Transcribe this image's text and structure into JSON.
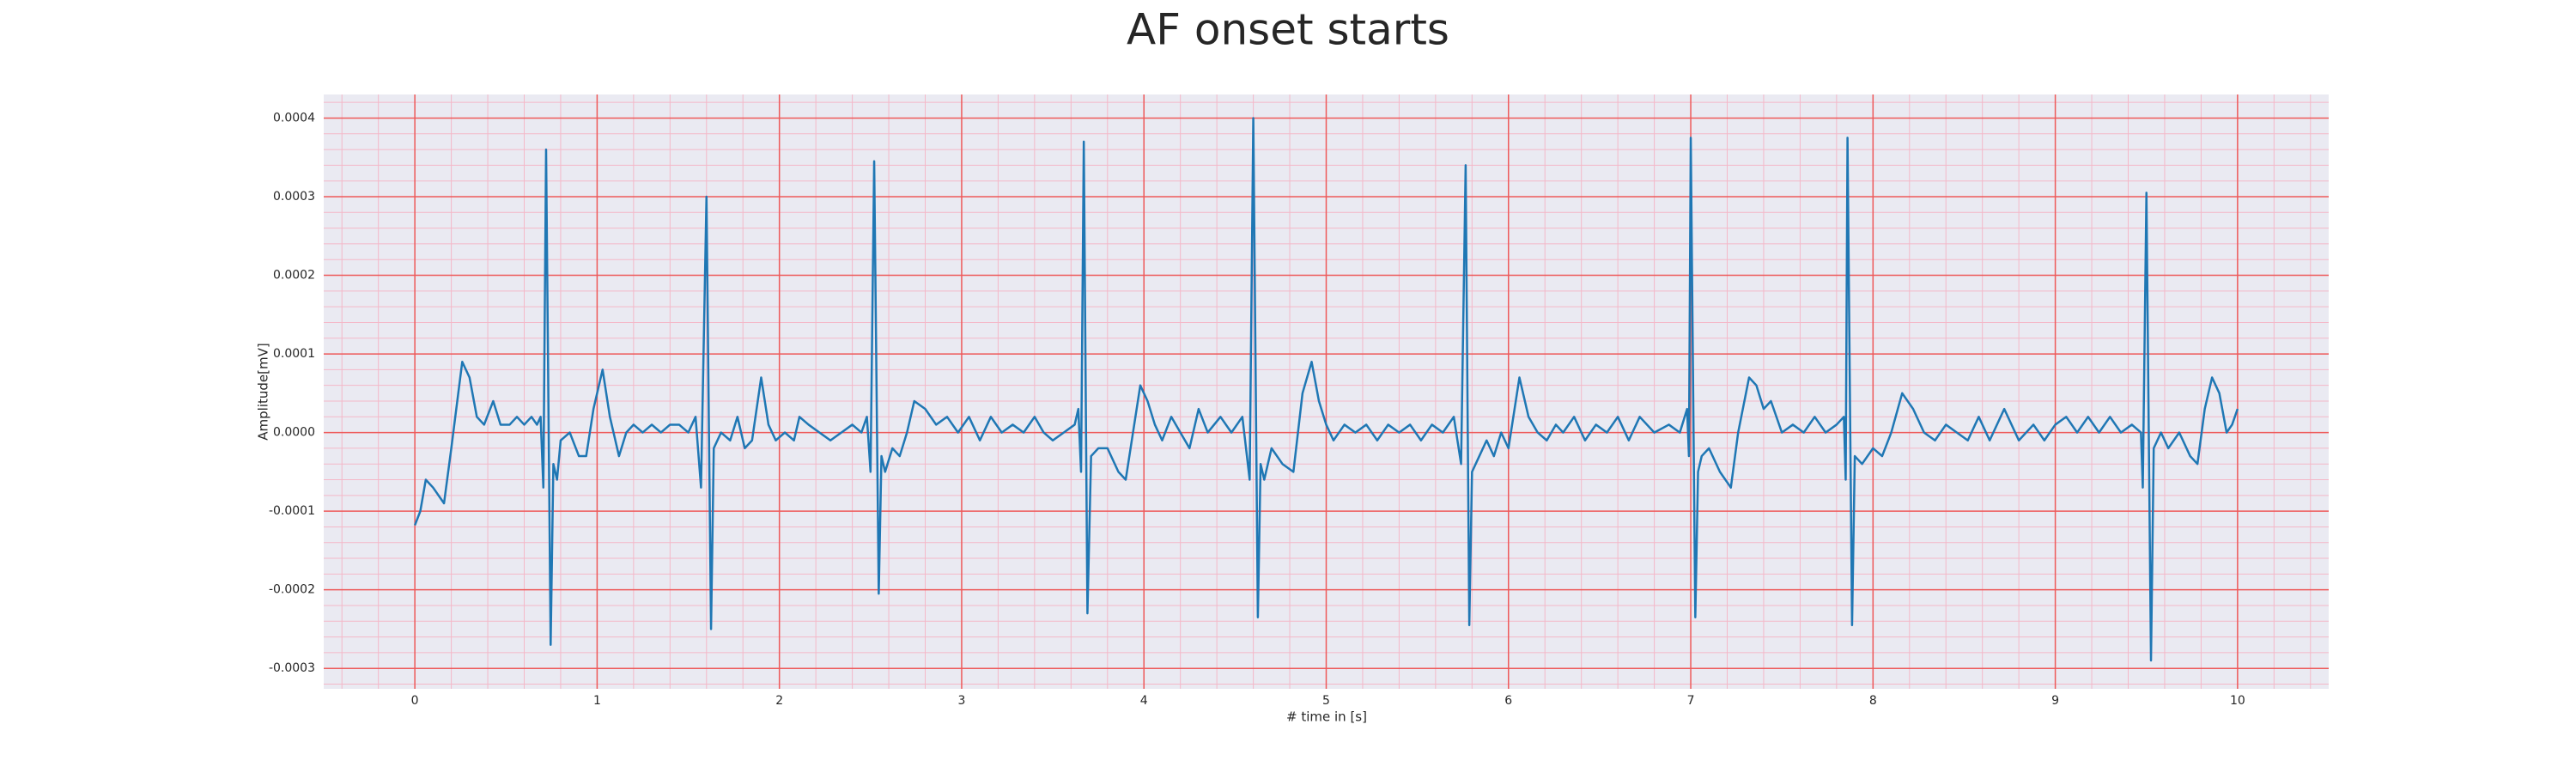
{
  "chart_data": {
    "type": "line",
    "title": "AF onset starts",
    "xlabel": "# time in [s]",
    "ylabel": "Amplitude[mV]",
    "xlim": [
      -0.5,
      10.5
    ],
    "xticks": [
      0,
      1,
      2,
      3,
      4,
      5,
      6,
      7,
      8,
      9,
      10
    ],
    "ylim": [
      -0.000326,
      0.00043
    ],
    "yticks": [
      -0.0003,
      -0.0002,
      -0.0001,
      {
        "value": 0,
        "label": "0.0000"
      },
      0.0001,
      0.0002,
      0.0003,
      0.0004
    ],
    "grid": true,
    "minor_grid": true,
    "color": "#1f77b4",
    "x": [
      0,
      0.03,
      0.06,
      0.1,
      0.16,
      0.2,
      0.26,
      0.3,
      0.34,
      0.38,
      0.43,
      0.47,
      0.52,
      0.56,
      0.6,
      0.64,
      0.67,
      0.69,
      0.705,
      0.72,
      0.745,
      0.76,
      0.78,
      0.8,
      0.85,
      0.9,
      0.94,
      0.98,
      1.03,
      1.07,
      1.12,
      1.16,
      1.2,
      1.25,
      1.3,
      1.35,
      1.4,
      1.45,
      1.5,
      1.54,
      1.57,
      1.6,
      1.625,
      1.64,
      1.68,
      1.73,
      1.77,
      1.81,
      1.85,
      1.9,
      1.94,
      1.98,
      2.03,
      2.08,
      2.11,
      2.16,
      2.22,
      2.28,
      2.34,
      2.4,
      2.45,
      2.48,
      2.5,
      2.52,
      2.545,
      2.56,
      2.58,
      2.62,
      2.66,
      2.7,
      2.74,
      2.8,
      2.86,
      2.92,
      2.98,
      3.04,
      3.1,
      3.16,
      3.22,
      3.28,
      3.34,
      3.4,
      3.45,
      3.5,
      3.56,
      3.62,
      3.64,
      3.655,
      3.67,
      3.69,
      3.71,
      3.75,
      3.8,
      3.86,
      3.9,
      3.94,
      3.98,
      4.02,
      4.06,
      4.1,
      4.15,
      4.2,
      4.25,
      4.3,
      4.35,
      4.42,
      4.48,
      4.54,
      4.58,
      4.6,
      4.625,
      4.64,
      4.66,
      4.7,
      4.76,
      4.82,
      4.87,
      4.92,
      4.96,
      5.0,
      5.04,
      5.1,
      5.16,
      5.22,
      5.28,
      5.34,
      5.4,
      5.46,
      5.52,
      5.58,
      5.64,
      5.7,
      5.74,
      5.765,
      5.785,
      5.8,
      5.84,
      5.88,
      5.92,
      5.96,
      6.0,
      6.06,
      6.11,
      6.16,
      6.21,
      6.26,
      6.3,
      6.36,
      6.42,
      6.48,
      6.54,
      6.6,
      6.66,
      6.72,
      6.8,
      6.88,
      6.94,
      6.98,
      6.99,
      7.0,
      7.025,
      7.04,
      7.06,
      7.1,
      7.16,
      7.22,
      7.26,
      7.32,
      7.36,
      7.4,
      7.44,
      7.5,
      7.56,
      7.62,
      7.68,
      7.74,
      7.8,
      7.84,
      7.85,
      7.86,
      7.885,
      7.9,
      7.94,
      8.0,
      8.05,
      8.1,
      8.16,
      8.22,
      8.28,
      8.34,
      8.4,
      8.46,
      8.52,
      8.58,
      8.64,
      8.72,
      8.8,
      8.88,
      8.94,
      9.0,
      9.06,
      9.12,
      9.18,
      9.24,
      9.3,
      9.36,
      9.42,
      9.47,
      9.48,
      9.5,
      9.525,
      9.54,
      9.58,
      9.62,
      9.68,
      9.74,
      9.78,
      9.82,
      9.86,
      9.9,
      9.94,
      9.97,
      10.0
    ],
    "values": [
      -0.000118,
      -0.0001,
      -6e-05,
      -7e-05,
      -9e-05,
      -2e-05,
      9e-05,
      7e-05,
      2e-05,
      1e-05,
      4e-05,
      1e-05,
      1e-05,
      2e-05,
      1e-05,
      2e-05,
      1e-05,
      2e-05,
      -7e-05,
      0.00036,
      -0.00027,
      -4e-05,
      -6e-05,
      -1e-05,
      0,
      -3e-05,
      -3e-05,
      3e-05,
      8e-05,
      2e-05,
      -3e-05,
      0,
      1e-05,
      0,
      1e-05,
      0,
      1e-05,
      1e-05,
      0,
      2e-05,
      -7e-05,
      0.0003,
      -0.00025,
      -2e-05,
      0,
      -1e-05,
      2e-05,
      -2e-05,
      -1e-05,
      7e-05,
      1e-05,
      -1e-05,
      0,
      -1e-05,
      2e-05,
      1e-05,
      0,
      -1e-05,
      0,
      1e-05,
      0,
      2e-05,
      -5e-05,
      0.000345,
      -0.000205,
      -3e-05,
      -5e-05,
      -2e-05,
      -3e-05,
      0,
      4e-05,
      3e-05,
      1e-05,
      2e-05,
      0,
      2e-05,
      -1e-05,
      2e-05,
      0,
      1e-05,
      0,
      2e-05,
      0,
      -1e-05,
      0,
      1e-05,
      3e-05,
      -5e-05,
      0.00037,
      -0.00023,
      -3e-05,
      -2e-05,
      -2e-05,
      -5e-05,
      -6e-05,
      0,
      6e-05,
      4e-05,
      1e-05,
      -1e-05,
      2e-05,
      0,
      -2e-05,
      3e-05,
      0,
      2e-05,
      0,
      2e-05,
      -6e-05,
      0.0004,
      -0.000235,
      -4e-05,
      -6e-05,
      -2e-05,
      -4e-05,
      -5e-05,
      5e-05,
      9e-05,
      4e-05,
      1e-05,
      -1e-05,
      1e-05,
      0,
      1e-05,
      -1e-05,
      1e-05,
      0,
      1e-05,
      -1e-05,
      1e-05,
      0,
      2e-05,
      -4e-05,
      0.00034,
      -0.000245,
      -5e-05,
      -3e-05,
      -1e-05,
      -3e-05,
      0,
      -2e-05,
      7e-05,
      2e-05,
      0,
      -1e-05,
      1e-05,
      0,
      2e-05,
      -1e-05,
      1e-05,
      0,
      2e-05,
      -1e-05,
      2e-05,
      0,
      1e-05,
      0,
      3e-05,
      -3e-05,
      0.000375,
      -0.000235,
      -5e-05,
      -3e-05,
      -2e-05,
      -5e-05,
      -7e-05,
      0,
      7e-05,
      6e-05,
      3e-05,
      4e-05,
      0,
      1e-05,
      0,
      2e-05,
      0,
      1e-05,
      2e-05,
      -6e-05,
      0.000375,
      -0.000245,
      -3e-05,
      -4e-05,
      -2e-05,
      -3e-05,
      0,
      5e-05,
      3e-05,
      0,
      -1e-05,
      1e-05,
      0,
      -1e-05,
      2e-05,
      -1e-05,
      3e-05,
      -1e-05,
      1e-05,
      -1e-05,
      1e-05,
      2e-05,
      0,
      2e-05,
      0,
      2e-05,
      0,
      1e-05,
      0,
      -7e-05,
      0.000305,
      -0.00029,
      -2e-05,
      0,
      -2e-05,
      0,
      -3e-05,
      -4e-05,
      3e-05,
      7e-05,
      5e-05,
      0,
      1e-05,
      3e-05
    ]
  }
}
